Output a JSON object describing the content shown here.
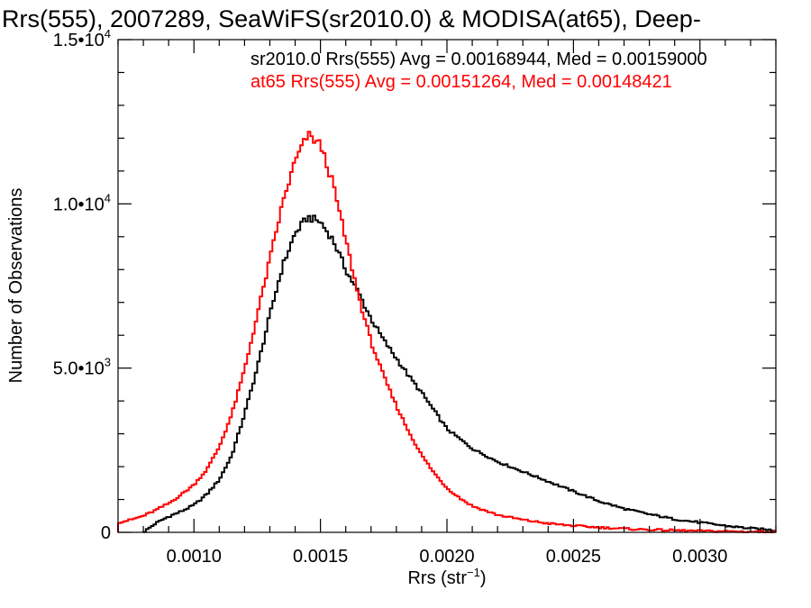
{
  "chart_data": {
    "type": "line",
    "title": "Rrs(555), 2007289, SeaWiFS(sr2010.0) & MODISA(at65), Deep-",
    "xlabel": "Rrs (str",
    "xlabel_sup": "−1",
    "xlabel_close": ")",
    "ylabel": "Number of Observations",
    "xlim": [
      0.0007,
      0.0033
    ],
    "ylim": [
      0,
      15000
    ],
    "grid": false,
    "legend_position": "top",
    "x_ticks": [
      0.001,
      0.0015,
      0.002,
      0.0025,
      0.003
    ],
    "x_tick_labels": [
      "0.0010",
      "0.0015",
      "0.0020",
      "0.0025",
      "0.0030"
    ],
    "y_ticks": [
      0,
      5000,
      10000,
      15000
    ],
    "y_tick_labels": [
      {
        "mant": "0",
        "exp": ""
      },
      {
        "mant": "5.0•10",
        "exp": "3"
      },
      {
        "mant": "1.0•10",
        "exp": "4"
      },
      {
        "mant": "1.5•10",
        "exp": "4"
      }
    ],
    "series": [
      {
        "name": "sr2010.0 Rrs(555) Avg = 0.00168944, Med = 0.00159000",
        "color": "#000000",
        "x": [
          0.0008,
          0.00085,
          0.0009,
          0.00095,
          0.001,
          0.00105,
          0.0011,
          0.00115,
          0.0012,
          0.00125,
          0.0013,
          0.00135,
          0.0014,
          0.00145,
          0.0015,
          0.00155,
          0.0016,
          0.00165,
          0.0017,
          0.00175,
          0.0018,
          0.00185,
          0.0019,
          0.00195,
          0.002,
          0.0021,
          0.0022,
          0.0023,
          0.0024,
          0.0025,
          0.0026,
          0.0027,
          0.0028,
          0.0029,
          0.003,
          0.0031,
          0.0032,
          0.0033
        ],
        "y": [
          0,
          280,
          480,
          640,
          830,
          1150,
          1600,
          2350,
          3600,
          5000,
          6600,
          8100,
          9100,
          9600,
          9450,
          8900,
          8000,
          7300,
          6500,
          5850,
          5300,
          4750,
          4250,
          3700,
          3150,
          2550,
          2150,
          1850,
          1550,
          1250,
          950,
          720,
          550,
          400,
          300,
          200,
          120,
          60
        ]
      },
      {
        "name": "at65 Rrs(555) Avg = 0.00151264, Med = 0.00148421",
        "color": "#ff0000",
        "x": [
          0.0007,
          0.00075,
          0.0008,
          0.00085,
          0.0009,
          0.00095,
          0.001,
          0.00105,
          0.0011,
          0.00115,
          0.0012,
          0.00125,
          0.0013,
          0.00135,
          0.0014,
          0.00145,
          0.0015,
          0.00155,
          0.0016,
          0.00165,
          0.0017,
          0.00175,
          0.0018,
          0.00185,
          0.0019,
          0.00195,
          0.002,
          0.00205,
          0.0021,
          0.0022,
          0.0023,
          0.0024,
          0.0025,
          0.0026,
          0.0027,
          0.0028,
          0.0029,
          0.003,
          0.0031,
          0.0032,
          0.0033
        ],
        "y": [
          300,
          380,
          500,
          680,
          880,
          1150,
          1450,
          1900,
          2600,
          3600,
          4950,
          6600,
          8300,
          10000,
          11300,
          12100,
          11800,
          10600,
          8900,
          7200,
          5800,
          4750,
          3850,
          3050,
          2350,
          1800,
          1350,
          1050,
          800,
          530,
          380,
          270,
          200,
          150,
          110,
          80,
          60,
          40,
          30,
          20,
          10
        ]
      }
    ]
  }
}
